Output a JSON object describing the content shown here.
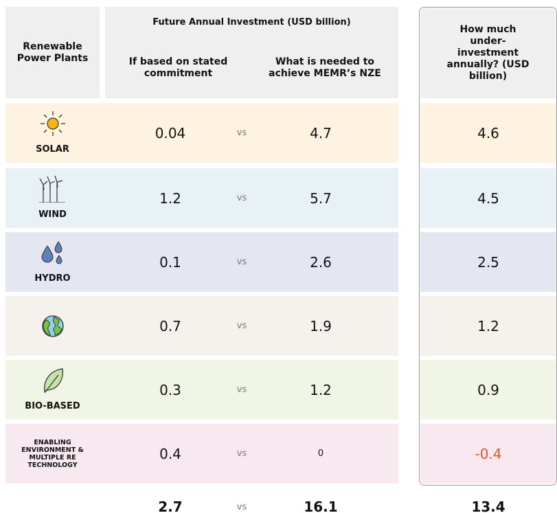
{
  "header": {
    "plant_column": "Renewable Power Plants",
    "investment_title": "Future Annual Investment (USD billion)",
    "stated": "If based on stated commitment",
    "needed": "What is needed to achieve MEMR’s NZE",
    "gap": "How much under-investment annually? (USD billion)"
  },
  "separator": "vs",
  "rows": [
    {
      "label": "SOLAR",
      "stated": 0.04,
      "needed": 4.7,
      "gap": 4.6
    },
    {
      "label": "WIND",
      "stated": 1.2,
      "needed": 5.7,
      "gap": 4.5
    },
    {
      "label": "HYDRO",
      "stated": 0.1,
      "needed": 2.6,
      "gap": 2.5
    },
    {
      "stated": 0.7,
      "needed": 1.9,
      "gap": 1.2
    },
    {
      "label": "BIO-BASED",
      "stated": 0.3,
      "needed": 1.2,
      "gap": 0.9
    },
    {
      "label": "ENABLING ENVIRONMENT & MULTIPLE RE TECHNOLOGY",
      "stated": 0.4,
      "needed": 0,
      "gap": -0.4
    }
  ],
  "totals": {
    "stated": 2.7,
    "needed": 16.1,
    "gap": 13.4
  }
}
